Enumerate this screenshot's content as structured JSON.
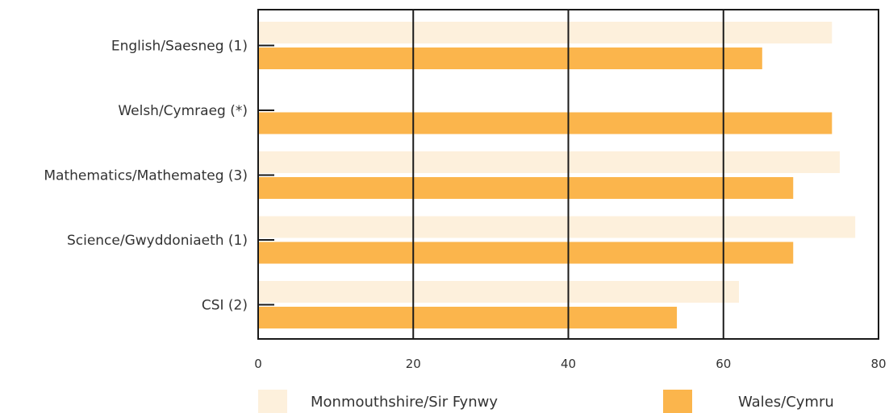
{
  "chart_data": {
    "type": "bar",
    "orientation": "horizontal",
    "categories": [
      "English/Saesneg (1)",
      "Welsh/Cymraeg (*)",
      "Mathematics/Mathemateg (3)",
      "Science/Gwyddoniaeth (1)",
      "CSI (2)"
    ],
    "series": [
      {
        "name": "Monmouthshire/Sir Fynwy",
        "color": "#fdf0dc",
        "values": [
          74,
          null,
          75,
          77,
          62
        ]
      },
      {
        "name": "Wales/Cymru",
        "color": "#fbb54c",
        "values": [
          65,
          74,
          69,
          69,
          54
        ]
      }
    ],
    "xlim": [
      0,
      80
    ],
    "xticks": [
      "0",
      "20",
      "40",
      "60",
      "80"
    ],
    "gridlines": [
      20,
      40,
      60
    ],
    "grid": true,
    "legend_position": "bottom"
  }
}
